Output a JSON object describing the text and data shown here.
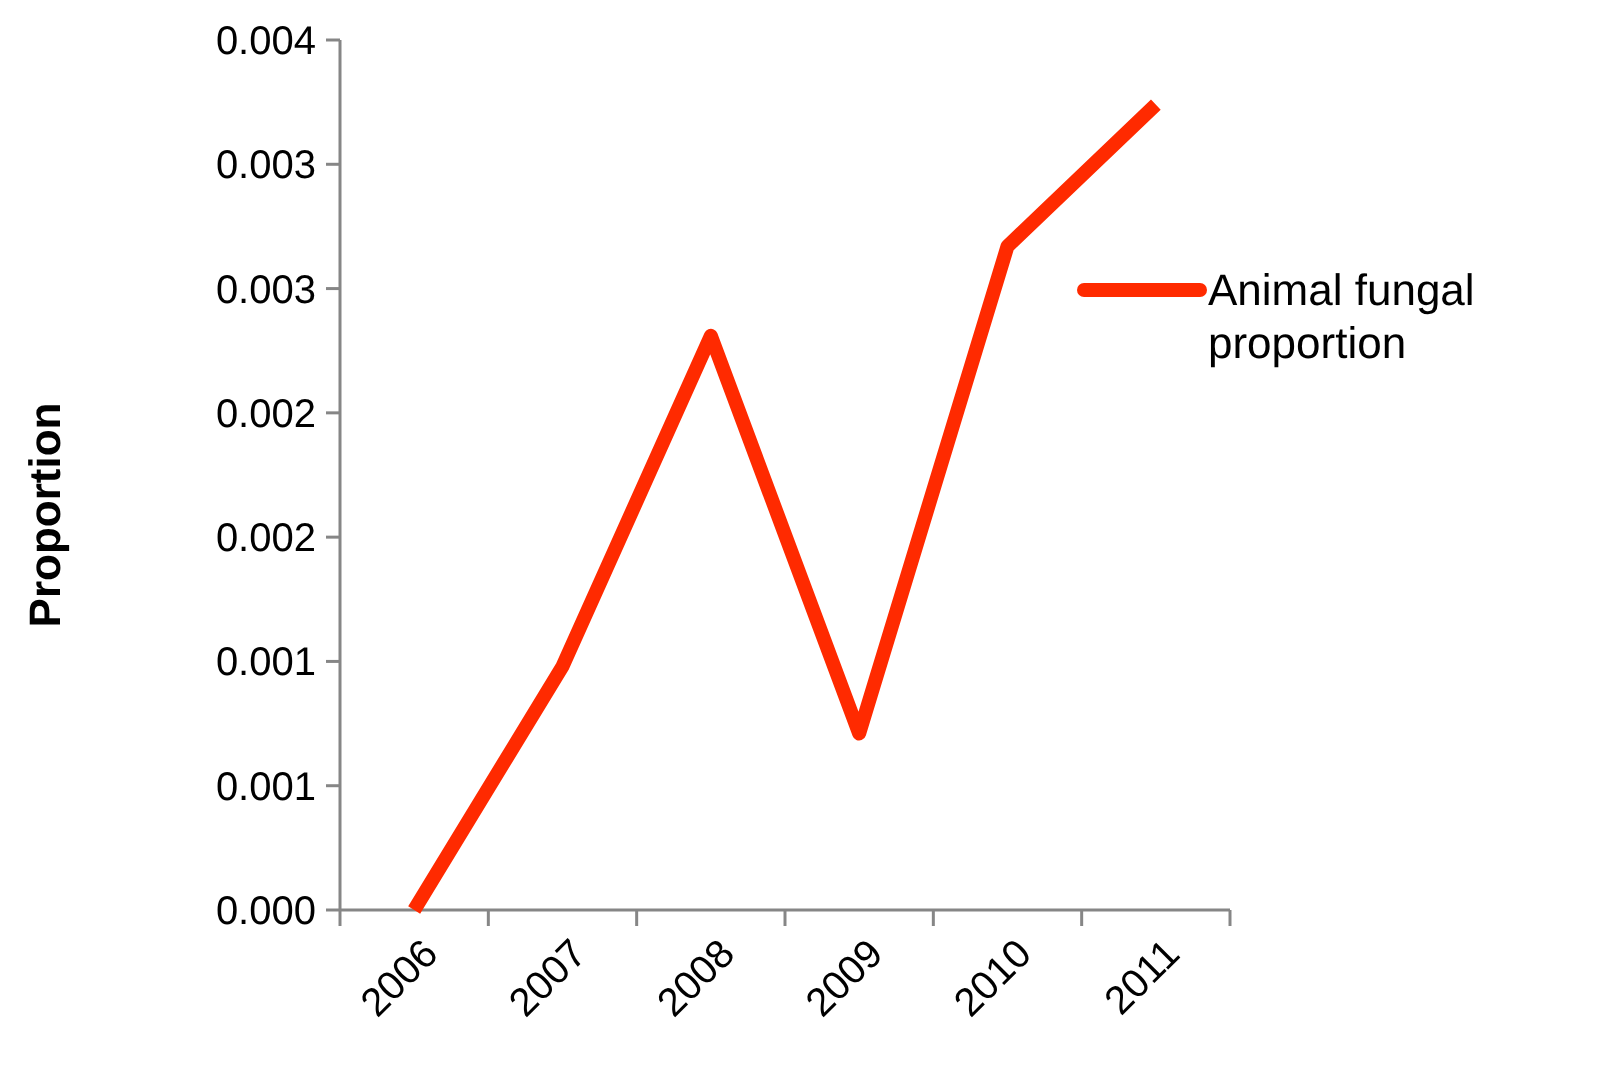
{
  "chart_data": {
    "type": "line",
    "ylabel": "Proportion",
    "categories": [
      "2006",
      "2007",
      "2008",
      "2009",
      "2010",
      "2011"
    ],
    "series": [
      {
        "name": "Animal fungal proportion",
        "color": "#ff2a00",
        "values": [
          0,
          0.00098,
          0.00231,
          0.00071,
          0.00267,
          0.00324
        ]
      }
    ],
    "ylim": [
      0,
      0.0035
    ],
    "yticks": [
      {
        "value": 0,
        "label": "0.000"
      },
      {
        "value": 0.0005,
        "label": "0.001"
      },
      {
        "value": 0.001,
        "label": "0.001"
      },
      {
        "value": 0.0015,
        "label": "0.002"
      },
      {
        "value": 0.002,
        "label": "0.002"
      },
      {
        "value": 0.0025,
        "label": "0.003"
      },
      {
        "value": 0.003,
        "label": "0.003"
      },
      {
        "value": 0.0035,
        "label": "0.004"
      }
    ],
    "legend": "right",
    "grid": false,
    "marker": "none",
    "line_style": "solid"
  }
}
